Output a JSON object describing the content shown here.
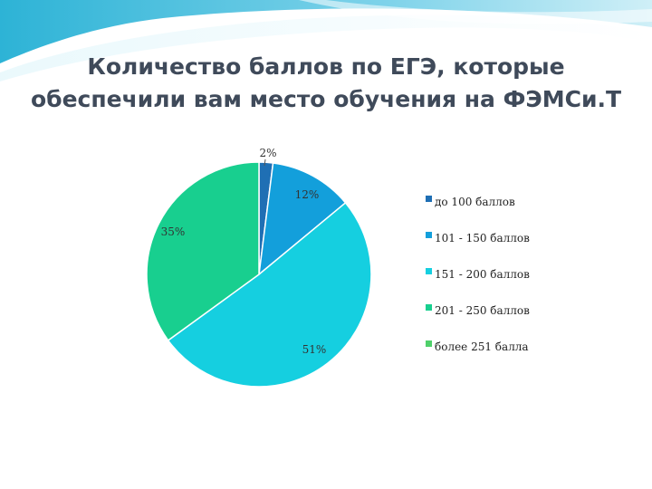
{
  "slide": {
    "title_line1": "Количество баллов по ЕГЭ, которые",
    "title_line2": "обеспечили вам место обучения на ФЭМСи.Т"
  },
  "colors": {
    "banner_light": "#cfeff7",
    "banner_mid": "#7fd3ea",
    "banner_dark": "#2db3d6"
  },
  "chart_data": {
    "type": "pie",
    "categories": [
      "до 100 баллов",
      "101 - 150 баллов",
      "151 - 200 баллов",
      "201 - 250 баллов",
      "более 251 балла"
    ],
    "values": [
      2,
      12,
      51,
      35,
      0
    ],
    "labels": [
      "2%",
      "12%",
      "51%",
      "35%",
      ""
    ],
    "colors": [
      "#1f6fb4",
      "#139fdb",
      "#15cfe0",
      "#18cf8f",
      "#4fd06a"
    ],
    "legend_position": "right"
  }
}
